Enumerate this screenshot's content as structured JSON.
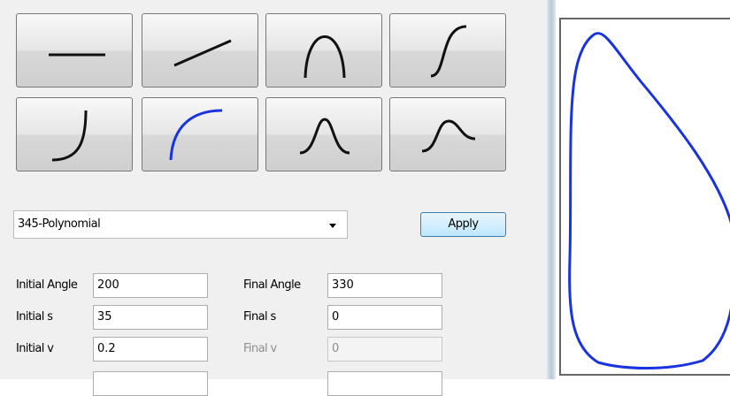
{
  "profile": {
    "selected": "345-Polynomial",
    "apply": "Apply"
  },
  "form": {
    "fields": [
      {
        "label": "Initial Angle",
        "value": "200",
        "disabled": false
      },
      {
        "label": "Final Angle",
        "value": "330",
        "disabled": false
      },
      {
        "label": "Initial s",
        "value": "35",
        "disabled": false
      },
      {
        "label": "Final s",
        "value": "0",
        "disabled": false
      },
      {
        "label": "Initial v",
        "value": "0.2",
        "disabled": false
      },
      {
        "label": "Final v",
        "value": "0",
        "disabled": true
      }
    ]
  }
}
